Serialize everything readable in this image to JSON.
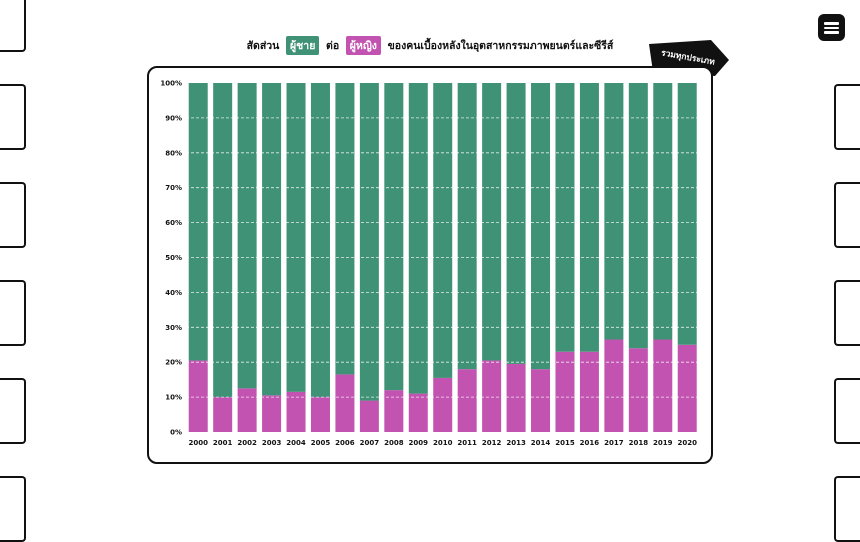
{
  "header": {
    "title_prefix": "สัดส่วน",
    "title_male": "ผู้ชาย",
    "title_between": "ต่อ",
    "title_female": "ผู้หญิง",
    "title_suffix": "ของคนเบื้องหลังในอุตสาหกรรมภาพยนตร์และซีรีส์",
    "category_tag": "รวมทุกประเภท"
  },
  "colors": {
    "male": "#3f9275",
    "female": "#c253b1"
  },
  "icons": {
    "menu": "hamburger-menu-icon"
  },
  "chart_data": {
    "type": "bar",
    "stacked": true,
    "normalized_percent": true,
    "categories": [
      "2000",
      "2001",
      "2002",
      "2003",
      "2004",
      "2005",
      "2006",
      "2007",
      "2008",
      "2009",
      "2010",
      "2011",
      "2012",
      "2013",
      "2014",
      "2015",
      "2016",
      "2017",
      "2018",
      "2019",
      "2020"
    ],
    "series": [
      {
        "name": "ผู้หญิง",
        "color": "#c253b1",
        "values": [
          20.5,
          10,
          12.5,
          10.5,
          11.5,
          10,
          16.5,
          9,
          12,
          11,
          15.5,
          18,
          20.5,
          19.5,
          18,
          23,
          23,
          26.5,
          24,
          26.5,
          25
        ]
      },
      {
        "name": "ผู้ชาย",
        "color": "#3f9275",
        "values": [
          79.5,
          90,
          87.5,
          89.5,
          88.5,
          90,
          83.5,
          91,
          88,
          89,
          84.5,
          82,
          79.5,
          80.5,
          82,
          77,
          77,
          73.5,
          76,
          73.5,
          75
        ]
      }
    ],
    "y_ticks": [
      "0%",
      "10%",
      "20%",
      "30%",
      "40%",
      "50%",
      "60%",
      "70%",
      "80%",
      "90%",
      "100%"
    ],
    "ylim": [
      0,
      100
    ],
    "grid": true,
    "grid_style": "dashed white",
    "title": "",
    "xlabel": "",
    "ylabel": ""
  }
}
